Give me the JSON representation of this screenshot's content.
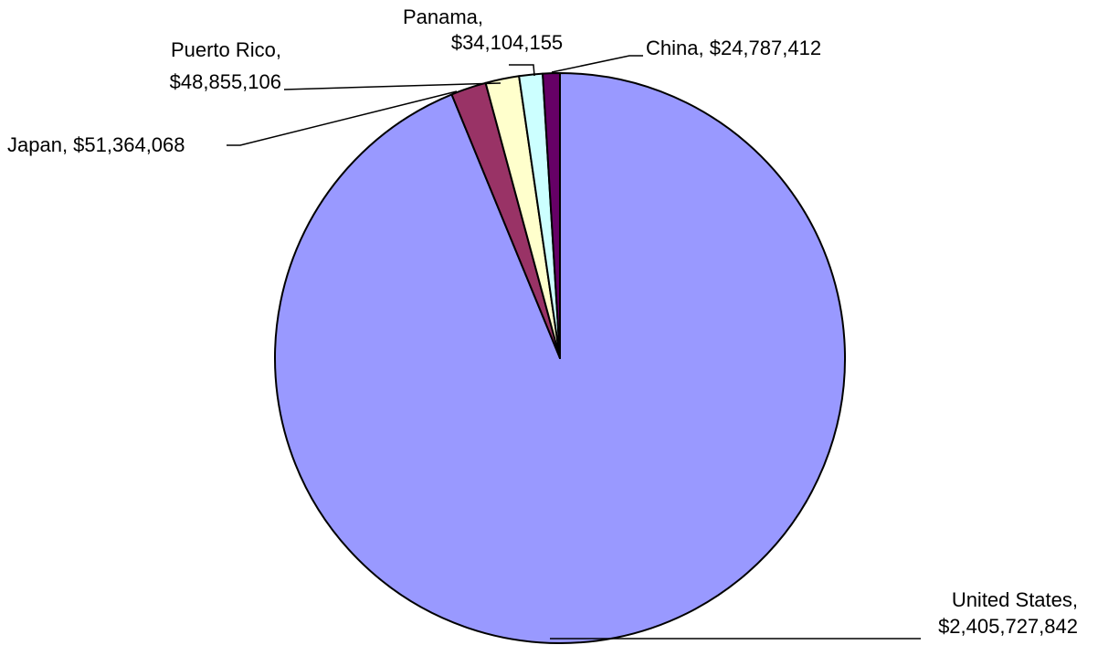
{
  "chart_data": {
    "type": "pie",
    "title": "",
    "slices": [
      {
        "name": "United States",
        "value": 2405727842,
        "value_label": "$2,405,727,842",
        "color": "#9999ff"
      },
      {
        "name": "Japan",
        "value": 51364068,
        "value_label": "$51,364,068",
        "color": "#993366"
      },
      {
        "name": "Puerto Rico",
        "value": 48855106,
        "value_label": "$48,855,106",
        "color": "#ffffcc"
      },
      {
        "name": "Panama",
        "value": 34104155,
        "value_label": "$34,104,155",
        "color": "#ccffff"
      },
      {
        "name": "China",
        "value": 24787412,
        "value_label": "$24,787,412",
        "color": "#660066"
      }
    ],
    "start_angle": "12 o'clock",
    "direction": "clockwise",
    "legend": "none"
  }
}
